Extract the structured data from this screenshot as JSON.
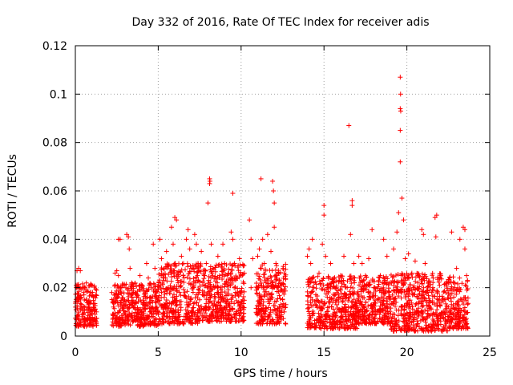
{
  "chart_data": {
    "type": "scatter",
    "title": "Day 332 of 2016, Rate Of TEC Index for receiver adis",
    "xlabel": "GPS time / hours",
    "ylabel": "ROTI / TECUs",
    "xlim": [
      0,
      25
    ],
    "ylim": [
      0,
      0.12
    ],
    "xticks": [
      0,
      5,
      10,
      15,
      20,
      25
    ],
    "xtick_labels": [
      "0",
      "5",
      "10",
      "15",
      "20",
      "25"
    ],
    "yticks": [
      0,
      0.02,
      0.04,
      0.06,
      0.08,
      0.1,
      0.12
    ],
    "ytick_labels": [
      "0",
      "0.02",
      "0.04",
      "0.06",
      "0.08",
      "0.1",
      "0.12"
    ],
    "grid": true,
    "marker": "plus",
    "color": "#ff0000",
    "series": [
      {
        "name": "ROTI",
        "points": [
          [
            0.1,
            0.027
          ],
          [
            0.2,
            0.028
          ],
          [
            0.3,
            0.027
          ],
          [
            0.1,
            0.02
          ],
          [
            0.2,
            0.015
          ],
          [
            0.3,
            0.012
          ],
          [
            0.4,
            0.008
          ],
          [
            0.5,
            0.018
          ],
          [
            0.7,
            0.019
          ],
          [
            0.8,
            0.014
          ],
          [
            0.9,
            0.01
          ],
          [
            1.0,
            0.021
          ],
          [
            1.1,
            0.016
          ],
          [
            1.2,
            0.011
          ],
          [
            0.6,
            0.005
          ],
          [
            0.9,
            0.007
          ],
          [
            2.4,
            0.026
          ],
          [
            2.5,
            0.027
          ],
          [
            2.6,
            0.025
          ],
          [
            2.6,
            0.04
          ],
          [
            2.7,
            0.04
          ],
          [
            2.2,
            0.018
          ],
          [
            2.3,
            0.012
          ],
          [
            2.5,
            0.008
          ],
          [
            2.8,
            0.02
          ],
          [
            2.9,
            0.015
          ],
          [
            3.0,
            0.01
          ],
          [
            3.1,
            0.042
          ],
          [
            3.2,
            0.041
          ],
          [
            3.25,
            0.036
          ],
          [
            3.3,
            0.028
          ],
          [
            3.4,
            0.022
          ],
          [
            3.5,
            0.012
          ],
          [
            3.6,
            0.018
          ],
          [
            3.7,
            0.008
          ],
          [
            3.9,
            0.025
          ],
          [
            4.0,
            0.02
          ],
          [
            4.1,
            0.014
          ],
          [
            4.3,
            0.03
          ],
          [
            4.4,
            0.024
          ],
          [
            4.5,
            0.01
          ],
          [
            4.7,
            0.038
          ],
          [
            4.8,
            0.028
          ],
          [
            4.9,
            0.016
          ],
          [
            5.1,
            0.04
          ],
          [
            5.2,
            0.032
          ],
          [
            5.3,
            0.024
          ],
          [
            5.4,
            0.012
          ],
          [
            5.5,
            0.035
          ],
          [
            5.6,
            0.02
          ],
          [
            5.8,
            0.045
          ],
          [
            5.9,
            0.038
          ],
          [
            6.0,
            0.03
          ],
          [
            6.0,
            0.049
          ],
          [
            6.1,
            0.048
          ],
          [
            6.2,
            0.022
          ],
          [
            6.3,
            0.013
          ],
          [
            6.4,
            0.033
          ],
          [
            6.5,
            0.025
          ],
          [
            6.6,
            0.018
          ],
          [
            6.7,
            0.04
          ],
          [
            6.8,
            0.044
          ],
          [
            6.9,
            0.036
          ],
          [
            7.0,
            0.028
          ],
          [
            7.1,
            0.02
          ],
          [
            7.2,
            0.042
          ],
          [
            7.3,
            0.038
          ],
          [
            7.4,
            0.03
          ],
          [
            7.5,
            0.015
          ],
          [
            7.6,
            0.035
          ],
          [
            7.8,
            0.025
          ],
          [
            7.9,
            0.03
          ],
          [
            8.0,
            0.055
          ],
          [
            8.1,
            0.065
          ],
          [
            8.12,
            0.064
          ],
          [
            8.1,
            0.063
          ],
          [
            8.2,
            0.038
          ],
          [
            8.3,
            0.028
          ],
          [
            8.4,
            0.02
          ],
          [
            8.6,
            0.033
          ],
          [
            8.7,
            0.025
          ],
          [
            8.8,
            0.015
          ],
          [
            8.9,
            0.038
          ],
          [
            9.0,
            0.03
          ],
          [
            9.2,
            0.022
          ],
          [
            9.4,
            0.043
          ],
          [
            9.5,
            0.059
          ],
          [
            9.5,
            0.04
          ],
          [
            9.6,
            0.03
          ],
          [
            9.8,
            0.018
          ],
          [
            9.9,
            0.032
          ],
          [
            10.0,
            0.025
          ],
          [
            10.1,
            0.012
          ],
          [
            10.2,
            0.026
          ],
          [
            10.5,
            0.048
          ],
          [
            10.6,
            0.04
          ],
          [
            10.7,
            0.032
          ],
          [
            10.6,
            0.02
          ],
          [
            11.0,
            0.033
          ],
          [
            11.1,
            0.036
          ],
          [
            11.2,
            0.065
          ],
          [
            11.3,
            0.04
          ],
          [
            11.4,
            0.03
          ],
          [
            11.5,
            0.022
          ],
          [
            11.6,
            0.042
          ],
          [
            11.8,
            0.035
          ],
          [
            11.9,
            0.064
          ],
          [
            11.95,
            0.06
          ],
          [
            12.0,
            0.055
          ],
          [
            12.0,
            0.045
          ],
          [
            12.1,
            0.03
          ],
          [
            12.2,
            0.02
          ],
          [
            12.3,
            0.012
          ],
          [
            12.5,
            0.015
          ],
          [
            12.6,
            0.01
          ],
          [
            12.7,
            0.013
          ],
          [
            14.0,
            0.033
          ],
          [
            14.1,
            0.036
          ],
          [
            14.2,
            0.03
          ],
          [
            14.3,
            0.04
          ],
          [
            14.4,
            0.022
          ],
          [
            14.5,
            0.013
          ],
          [
            14.7,
            0.026
          ],
          [
            14.9,
            0.038
          ],
          [
            15.0,
            0.054
          ],
          [
            15.0,
            0.05
          ],
          [
            15.1,
            0.033
          ],
          [
            15.2,
            0.02
          ],
          [
            15.4,
            0.03
          ],
          [
            15.6,
            0.022
          ],
          [
            15.8,
            0.015
          ],
          [
            16.0,
            0.025
          ],
          [
            16.2,
            0.033
          ],
          [
            16.4,
            0.02
          ],
          [
            16.5,
            0.087
          ],
          [
            16.6,
            0.042
          ],
          [
            16.7,
            0.056
          ],
          [
            16.7,
            0.054
          ],
          [
            16.8,
            0.03
          ],
          [
            17.0,
            0.012
          ],
          [
            17.1,
            0.033
          ],
          [
            17.3,
            0.03
          ],
          [
            17.5,
            0.025
          ],
          [
            17.7,
            0.032
          ],
          [
            17.9,
            0.044
          ],
          [
            18.0,
            0.02
          ],
          [
            18.2,
            0.015
          ],
          [
            18.4,
            0.025
          ],
          [
            18.6,
            0.04
          ],
          [
            18.8,
            0.033
          ],
          [
            19.0,
            0.022
          ],
          [
            19.2,
            0.036
          ],
          [
            19.4,
            0.043
          ],
          [
            19.5,
            0.051
          ],
          [
            19.6,
            0.107
          ],
          [
            19.62,
            0.1
          ],
          [
            19.6,
            0.094
          ],
          [
            19.63,
            0.093
          ],
          [
            19.6,
            0.085
          ],
          [
            19.6,
            0.072
          ],
          [
            19.7,
            0.057
          ],
          [
            19.8,
            0.048
          ],
          [
            19.9,
            0.032
          ],
          [
            20.1,
            0.034
          ],
          [
            20.3,
            0.026
          ],
          [
            20.5,
            0.031
          ],
          [
            20.7,
            0.025
          ],
          [
            20.9,
            0.044
          ],
          [
            21.0,
            0.042
          ],
          [
            21.1,
            0.03
          ],
          [
            21.3,
            0.022
          ],
          [
            21.5,
            0.018
          ],
          [
            21.7,
            0.049
          ],
          [
            21.8,
            0.05
          ],
          [
            21.75,
            0.041
          ],
          [
            22.0,
            0.024
          ],
          [
            22.3,
            0.015
          ],
          [
            22.5,
            0.012
          ],
          [
            22.7,
            0.043
          ],
          [
            22.9,
            0.02
          ],
          [
            23.0,
            0.028
          ],
          [
            23.2,
            0.04
          ],
          [
            23.4,
            0.045
          ],
          [
            23.5,
            0.044
          ],
          [
            23.5,
            0.036
          ],
          [
            23.6,
            0.025
          ],
          [
            23.3,
            0.015
          ],
          [
            23.1,
            0.005
          ]
        ]
      }
    ],
    "dense_bands": [
      [
        0.0,
        1.3,
        0.004,
        0.022
      ],
      [
        2.2,
        5.0,
        0.004,
        0.022
      ],
      [
        5.0,
        7.5,
        0.005,
        0.03
      ],
      [
        7.5,
        10.2,
        0.006,
        0.03
      ],
      [
        10.9,
        12.7,
        0.005,
        0.03
      ],
      [
        14.0,
        17.0,
        0.003,
        0.025
      ],
      [
        17.0,
        19.0,
        0.005,
        0.025
      ],
      [
        19.0,
        22.5,
        0.002,
        0.026
      ],
      [
        22.5,
        23.7,
        0.003,
        0.025
      ]
    ]
  }
}
